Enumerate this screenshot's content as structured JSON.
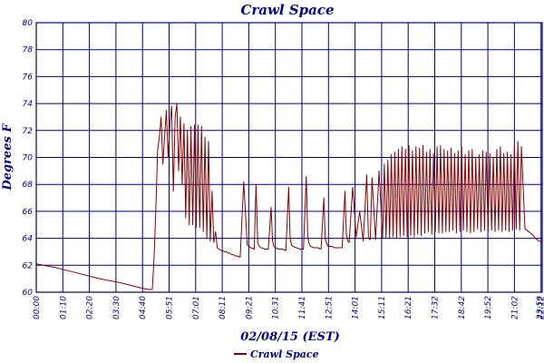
{
  "chart_data": {
    "type": "line",
    "title": "Crawl Space",
    "xlabel": "02/08/15 (EST)",
    "ylabel": "Degrees F",
    "ylim": [
      60,
      80
    ],
    "yticks": [
      60,
      62,
      64,
      66,
      68,
      70,
      72,
      74,
      76,
      78,
      80
    ],
    "xlim": [
      0,
      1439
    ],
    "xtick_labels": [
      "00:00",
      "01:10",
      "02:20",
      "03:30",
      "04:40",
      "05:51",
      "07:01",
      "08:11",
      "09:21",
      "10:31",
      "11:41",
      "12:51",
      "14:01",
      "15:11",
      "16:21",
      "17:32",
      "18:42",
      "19:52",
      "21:02",
      "22:12",
      "23:22",
      "23:59"
    ],
    "grid": true,
    "legend_position": "bottom-center",
    "colors": {
      "series": "#8b0000",
      "grid": "#000080",
      "text": "#00008b"
    },
    "series": [
      {
        "name": "Crawl Space",
        "x": [
          0,
          60,
          120,
          180,
          240,
          300,
          320,
          330,
          335,
          340,
          345,
          350,
          355,
          360,
          365,
          370,
          375,
          380,
          385,
          390,
          395,
          400,
          405,
          410,
          415,
          420,
          425,
          430,
          435,
          440,
          445,
          450,
          455,
          460,
          465,
          470,
          475,
          480,
          485,
          490,
          495,
          500,
          505,
          510,
          515,
          520,
          525,
          530,
          535,
          540,
          545,
          550,
          555,
          560,
          565,
          570,
          580,
          590,
          600,
          610,
          620,
          625,
          630,
          635,
          640,
          650,
          660,
          668,
          672,
          676,
          680,
          690,
          700,
          710,
          718,
          722,
          726,
          730,
          740,
          750,
          760,
          768,
          772,
          776,
          780,
          790,
          800,
          810,
          818,
          822,
          826,
          830,
          840,
          850,
          860,
          870,
          878,
          882,
          886,
          890,
          900,
          910,
          920,
          930,
          940,
          945,
          950,
          955,
          965,
          975,
          985,
          990,
          995,
          1000,
          1005,
          1010,
          1015,
          1020,
          1025,
          1030,
          1035,
          1040,
          1045,
          1050,
          1055,
          1060,
          1065,
          1070,
          1075,
          1080,
          1085,
          1090,
          1095,
          1100,
          1105,
          1110,
          1115,
          1120,
          1125,
          1130,
          1135,
          1140,
          1145,
          1150,
          1155,
          1160,
          1165,
          1170,
          1175,
          1180,
          1185,
          1190,
          1195,
          1200,
          1205,
          1210,
          1215,
          1220,
          1225,
          1230,
          1235,
          1240,
          1245,
          1250,
          1255,
          1260,
          1265,
          1270,
          1275,
          1280,
          1285,
          1290,
          1295,
          1300,
          1305,
          1310,
          1315,
          1320,
          1325,
          1330,
          1335,
          1340,
          1345,
          1350,
          1355,
          1360,
          1365,
          1370,
          1375,
          1380,
          1390,
          1400,
          1410,
          1420,
          1430,
          1439
        ],
        "values": [
          62.1,
          61.8,
          61.4,
          61.0,
          60.7,
          60.3,
          60.2,
          60.2,
          62.5,
          66.0,
          70.5,
          71.5,
          73.0,
          69.5,
          71.5,
          73.5,
          70.0,
          72.5,
          73.8,
          67.5,
          73.0,
          74.0,
          69.0,
          73.0,
          68.0,
          72.5,
          65.5,
          72.0,
          65.0,
          72.3,
          65.0,
          72.4,
          64.8,
          72.4,
          64.8,
          72.3,
          64.5,
          71.5,
          64.0,
          71.2,
          63.8,
          67.5,
          63.7,
          64.5,
          63.3,
          63.2,
          63.1,
          63.1,
          63.0,
          63.0,
          62.9,
          62.9,
          62.8,
          62.8,
          62.7,
          62.7,
          62.6,
          68.2,
          63.5,
          63.3,
          63.2,
          68.0,
          63.6,
          63.4,
          63.3,
          63.2,
          63.2,
          66.3,
          63.8,
          63.4,
          63.3,
          63.2,
          63.2,
          63.1,
          67.8,
          64.0,
          63.5,
          63.4,
          63.3,
          63.2,
          63.2,
          68.6,
          64.2,
          63.6,
          63.4,
          63.3,
          63.3,
          63.2,
          67.0,
          64.0,
          63.6,
          63.4,
          63.4,
          63.3,
          63.3,
          63.3,
          67.5,
          64.3,
          63.8,
          63.7,
          67.8,
          64.1,
          66.0,
          63.8,
          68.7,
          64.0,
          63.9,
          68.5,
          63.9,
          69.0,
          64.0,
          69.5,
          64.0,
          69.8,
          64.0,
          70.2,
          64.1,
          70.4,
          64.0,
          70.6,
          64.1,
          70.8,
          64.2,
          70.6,
          64.1,
          70.9,
          64.2,
          70.5,
          64.1,
          70.8,
          64.3,
          70.7,
          64.2,
          70.9,
          64.4,
          70.4,
          64.5,
          70.6,
          64.3,
          70.3,
          64.5,
          70.8,
          64.4,
          70.9,
          64.4,
          70.6,
          64.5,
          70.5,
          64.5,
          70.7,
          64.6,
          70.3,
          64.4,
          70.5,
          64.5,
          70.8,
          64.6,
          70.2,
          64.5,
          70.5,
          64.4,
          70.6,
          64.5,
          70.0,
          64.7,
          70.2,
          64.5,
          70.5,
          64.6,
          70.4,
          64.5,
          70.3,
          64.6,
          70.0,
          64.5,
          70.6,
          64.6,
          70.8,
          64.5,
          70.3,
          64.6,
          70.4,
          64.5,
          70.2,
          64.6,
          71.0,
          64.7,
          71.2,
          64.6,
          70.8,
          64.7,
          64.5,
          64.3,
          64.0,
          63.8,
          63.7
        ]
      }
    ]
  }
}
